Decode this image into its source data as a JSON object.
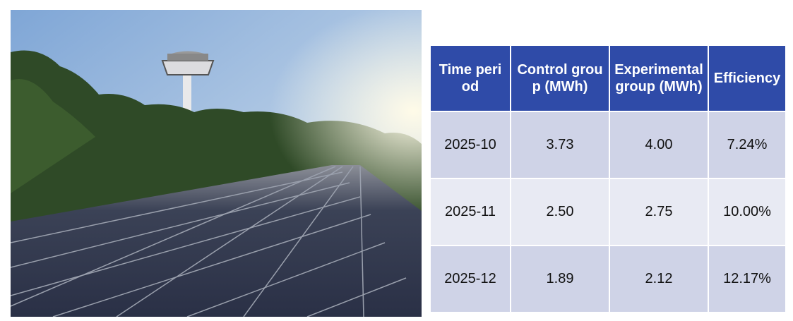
{
  "table": {
    "header": [
      "Time period",
      "Control group (MWh)",
      "Experimental group (MWh)",
      "Efficiency"
    ],
    "rows": [
      [
        "2025-10",
        "3.73",
        "4.00",
        "7.24%"
      ],
      [
        "2025-11",
        "2.50",
        "2.75",
        "10.00%"
      ],
      [
        "2025-12",
        "1.89",
        "2.12",
        "12.17%"
      ]
    ]
  }
}
